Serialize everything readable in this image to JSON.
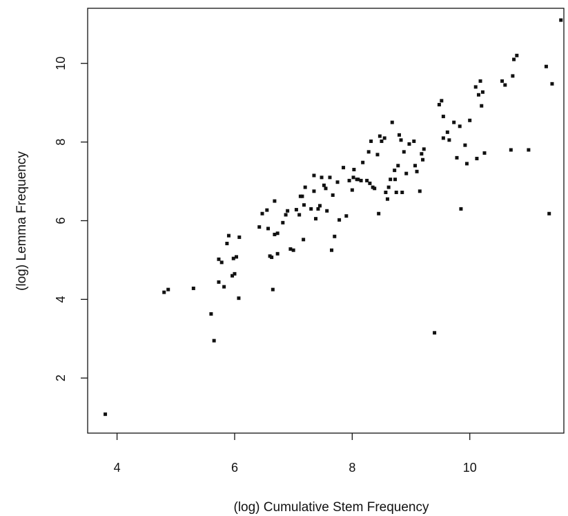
{
  "chart_data": {
    "type": "scatter",
    "title": "",
    "xlabel": "(log) Cumulative Stem Frequency",
    "ylabel": "(log) Lemma Frequency",
    "xlim": [
      3.5,
      11.6
    ],
    "ylim": [
      0.6,
      11.4
    ],
    "xticks": [
      4,
      6,
      8,
      10
    ],
    "yticks": [
      2,
      4,
      6,
      8,
      10
    ],
    "grid": false,
    "legend": "none",
    "point_color": "#111111",
    "points": [
      [
        3.8,
        1.08
      ],
      [
        4.8,
        4.18
      ],
      [
        4.87,
        4.25
      ],
      [
        5.3,
        4.28
      ],
      [
        5.6,
        3.63
      ],
      [
        5.65,
        2.95
      ],
      [
        5.73,
        4.44
      ],
      [
        5.73,
        5.02
      ],
      [
        5.78,
        4.94
      ],
      [
        5.82,
        4.32
      ],
      [
        5.87,
        5.42
      ],
      [
        5.9,
        5.62
      ],
      [
        5.96,
        4.6
      ],
      [
        5.98,
        5.04
      ],
      [
        6.0,
        4.65
      ],
      [
        6.03,
        5.08
      ],
      [
        6.08,
        5.58
      ],
      [
        6.07,
        4.03
      ],
      [
        6.42,
        5.84
      ],
      [
        6.47,
        6.18
      ],
      [
        6.55,
        6.27
      ],
      [
        6.57,
        5.8
      ],
      [
        6.6,
        5.1
      ],
      [
        6.63,
        5.07
      ],
      [
        6.65,
        4.25
      ],
      [
        6.68,
        6.5
      ],
      [
        6.68,
        5.65
      ],
      [
        6.73,
        5.68
      ],
      [
        6.73,
        5.16
      ],
      [
        6.82,
        5.95
      ],
      [
        6.87,
        6.15
      ],
      [
        6.9,
        6.25
      ],
      [
        6.95,
        5.28
      ],
      [
        7.0,
        5.25
      ],
      [
        7.05,
        6.28
      ],
      [
        7.1,
        6.15
      ],
      [
        7.12,
        6.62
      ],
      [
        7.15,
        6.62
      ],
      [
        7.17,
        5.52
      ],
      [
        7.18,
        6.4
      ],
      [
        7.2,
        6.85
      ],
      [
        7.3,
        6.3
      ],
      [
        7.35,
        6.75
      ],
      [
        7.35,
        7.15
      ],
      [
        7.38,
        6.05
      ],
      [
        7.42,
        6.3
      ],
      [
        7.45,
        6.38
      ],
      [
        7.48,
        7.1
      ],
      [
        7.52,
        6.9
      ],
      [
        7.55,
        6.82
      ],
      [
        7.57,
        6.25
      ],
      [
        7.62,
        7.1
      ],
      [
        7.65,
        5.25
      ],
      [
        7.67,
        6.65
      ],
      [
        7.7,
        5.6
      ],
      [
        7.75,
        6.98
      ],
      [
        7.78,
        6.02
      ],
      [
        7.85,
        7.35
      ],
      [
        7.9,
        6.12
      ],
      [
        7.95,
        7.02
      ],
      [
        8.0,
        6.78
      ],
      [
        8.02,
        7.1
      ],
      [
        8.03,
        7.3
      ],
      [
        8.08,
        7.05
      ],
      [
        8.1,
        7.05
      ],
      [
        8.15,
        7.02
      ],
      [
        8.18,
        7.48
      ],
      [
        8.25,
        7.02
      ],
      [
        8.28,
        7.75
      ],
      [
        8.3,
        6.95
      ],
      [
        8.32,
        8.02
      ],
      [
        8.35,
        6.85
      ],
      [
        8.38,
        6.82
      ],
      [
        8.43,
        7.68
      ],
      [
        8.45,
        6.18
      ],
      [
        8.47,
        8.15
      ],
      [
        8.5,
        8.02
      ],
      [
        8.55,
        8.1
      ],
      [
        8.57,
        6.72
      ],
      [
        8.6,
        6.55
      ],
      [
        8.62,
        6.85
      ],
      [
        8.65,
        7.05
      ],
      [
        8.68,
        8.5
      ],
      [
        8.72,
        7.28
      ],
      [
        8.73,
        7.05
      ],
      [
        8.75,
        6.72
      ],
      [
        8.78,
        7.4
      ],
      [
        8.8,
        8.18
      ],
      [
        8.83,
        8.05
      ],
      [
        8.85,
        6.72
      ],
      [
        8.88,
        7.75
      ],
      [
        8.92,
        7.2
      ],
      [
        8.97,
        7.95
      ],
      [
        9.05,
        8.02
      ],
      [
        9.07,
        7.4
      ],
      [
        9.1,
        7.25
      ],
      [
        9.15,
        6.75
      ],
      [
        9.18,
        7.7
      ],
      [
        9.2,
        7.55
      ],
      [
        9.22,
        7.82
      ],
      [
        9.4,
        3.15
      ],
      [
        9.48,
        8.95
      ],
      [
        9.52,
        9.05
      ],
      [
        9.55,
        8.65
      ],
      [
        9.55,
        8.1
      ],
      [
        9.62,
        8.25
      ],
      [
        9.65,
        8.05
      ],
      [
        9.73,
        8.5
      ],
      [
        9.78,
        7.6
      ],
      [
        9.83,
        8.4
      ],
      [
        9.85,
        6.3
      ],
      [
        9.92,
        7.92
      ],
      [
        9.95,
        7.45
      ],
      [
        10.0,
        8.55
      ],
      [
        10.1,
        9.4
      ],
      [
        10.12,
        7.58
      ],
      [
        10.15,
        9.2
      ],
      [
        10.18,
        9.55
      ],
      [
        10.2,
        8.92
      ],
      [
        10.22,
        9.27
      ],
      [
        10.25,
        7.72
      ],
      [
        10.55,
        9.55
      ],
      [
        10.6,
        9.45
      ],
      [
        10.7,
        7.8
      ],
      [
        10.73,
        9.68
      ],
      [
        10.75,
        10.1
      ],
      [
        10.8,
        10.2
      ],
      [
        11.0,
        7.8
      ],
      [
        11.3,
        9.92
      ],
      [
        11.35,
        6.18
      ],
      [
        11.4,
        9.48
      ],
      [
        11.55,
        11.1
      ]
    ]
  }
}
